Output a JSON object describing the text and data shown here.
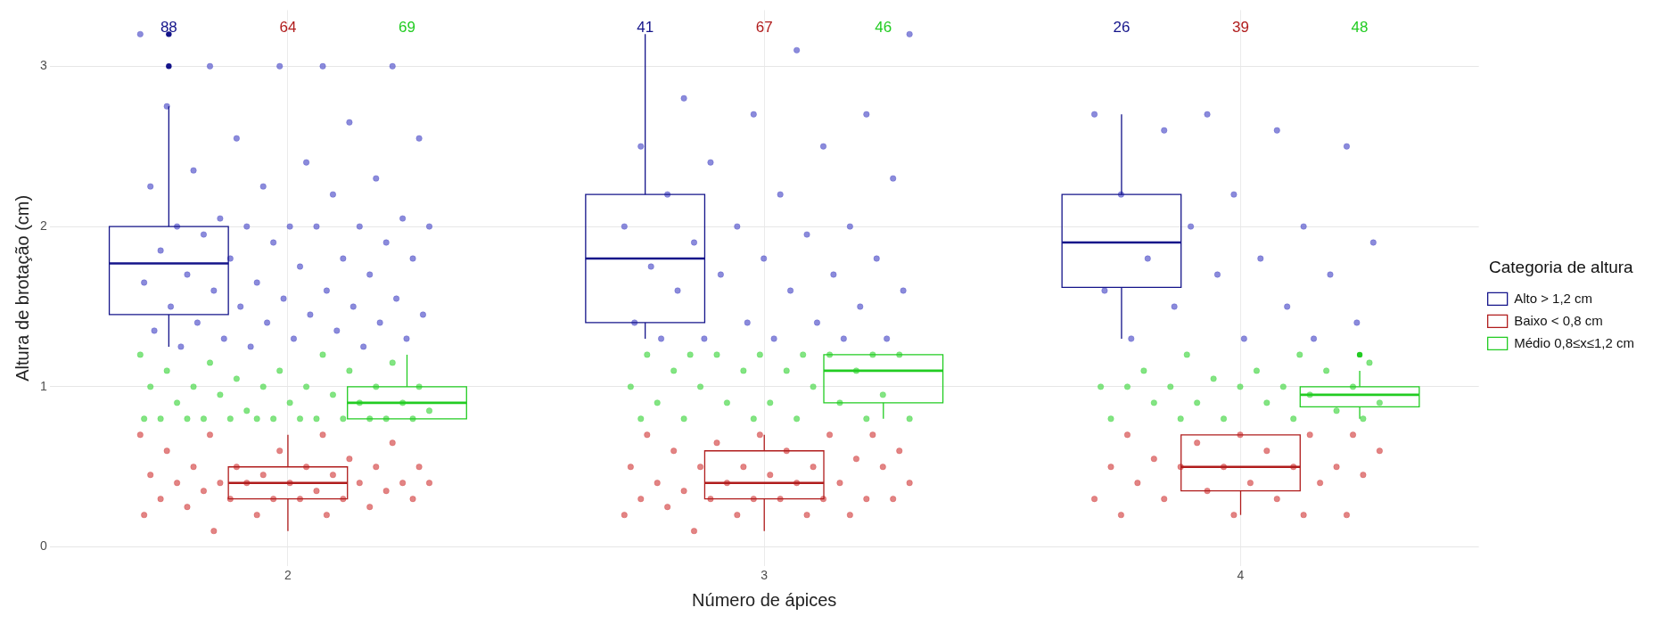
{
  "chart_data": {
    "type": "box",
    "xlabel": "Número de ápices",
    "ylabel": "Altura de brotação (cm)",
    "legend_title": "Categoria de altura",
    "categories": [
      "2",
      "3",
      "4"
    ],
    "ylim": [
      -0.12,
      3.35
    ],
    "yticks": [
      0,
      1,
      2,
      3
    ],
    "grid": true,
    "legend": "right",
    "series": [
      {
        "type": "box",
        "name": "Alto > 1,2 cm",
        "color": "#14148a",
        "boxes": [
          {
            "low": 1.25,
            "q1": 1.45,
            "median": 1.77,
            "q3": 2.0,
            "high": 2.75,
            "outliers": [
              3.0,
              3.2
            ]
          },
          {
            "low": 1.3,
            "q1": 1.4,
            "median": 1.8,
            "q3": 2.2,
            "high": 3.2
          },
          {
            "low": 1.3,
            "q1": 1.62,
            "median": 1.9,
            "q3": 2.2,
            "high": 2.7
          }
        ]
      },
      {
        "type": "box",
        "name": "Baixo < 0,8 cm",
        "color": "#b01c1c",
        "boxes": [
          {
            "low": 0.1,
            "q1": 0.3,
            "median": 0.4,
            "q3": 0.5,
            "high": 0.7
          },
          {
            "low": 0.1,
            "q1": 0.3,
            "median": 0.4,
            "q3": 0.6,
            "high": 0.7
          },
          {
            "low": 0.2,
            "q1": 0.35,
            "median": 0.5,
            "q3": 0.7,
            "high": 0.7
          }
        ]
      },
      {
        "type": "box",
        "name": "Médio 0,8≤x≤1,2 cm",
        "color": "#22cc22",
        "boxes": [
          {
            "low": 0.8,
            "q1": 0.8,
            "median": 0.9,
            "q3": 1.0,
            "high": 1.2
          },
          {
            "low": 0.8,
            "q1": 0.9,
            "median": 1.1,
            "q3": 1.2,
            "high": 1.2
          },
          {
            "low": 0.8,
            "q1": 0.875,
            "median": 0.95,
            "q3": 1.0,
            "high": 1.1,
            "outliers": [
              1.2
            ]
          }
        ]
      },
      {
        "type": "scatter",
        "color": "#5a5acc",
        "x": [
          "2",
          "2",
          "2",
          "2",
          "2",
          "2",
          "2",
          "2",
          "2",
          "2",
          "2",
          "2",
          "2",
          "2",
          "2",
          "2",
          "2",
          "2",
          "2",
          "2",
          "2",
          "2",
          "2",
          "2",
          "2",
          "2",
          "2",
          "2",
          "2",
          "2",
          "2",
          "2",
          "2",
          "2",
          "2",
          "2",
          "2",
          "2",
          "2",
          "2",
          "2",
          "2",
          "2",
          "2",
          "2",
          "2",
          "2",
          "2",
          "2",
          "2",
          "2",
          "2",
          "2",
          "2",
          "2",
          "3",
          "3",
          "3",
          "3",
          "3",
          "3",
          "3",
          "3",
          "3",
          "3",
          "3",
          "3",
          "3",
          "3",
          "3",
          "3",
          "3",
          "3",
          "3",
          "3",
          "3",
          "3",
          "3",
          "3",
          "3",
          "3",
          "3",
          "3",
          "3",
          "3",
          "3",
          "3",
          "3",
          "4",
          "4",
          "4",
          "4",
          "4",
          "4",
          "4",
          "4",
          "4",
          "4",
          "4",
          "4",
          "4",
          "4",
          "4",
          "4",
          "4",
          "4",
          "4",
          "4",
          "4"
        ],
        "values": [
          3.2,
          3.0,
          3.0,
          3.0,
          3.0,
          2.75,
          2.65,
          2.55,
          2.55,
          2.4,
          2.35,
          2.3,
          2.25,
          2.25,
          2.2,
          2.05,
          2.05,
          2.0,
          2.0,
          2.0,
          2.0,
          2.0,
          2.0,
          1.95,
          1.9,
          1.9,
          1.85,
          1.8,
          1.8,
          1.8,
          1.75,
          1.7,
          1.7,
          1.65,
          1.65,
          1.6,
          1.6,
          1.55,
          1.55,
          1.5,
          1.5,
          1.5,
          1.45,
          1.45,
          1.4,
          1.4,
          1.4,
          1.35,
          1.35,
          1.3,
          1.3,
          1.3,
          1.25,
          1.25,
          1.25,
          3.2,
          3.1,
          2.8,
          2.7,
          2.7,
          2.5,
          2.5,
          2.4,
          2.3,
          2.2,
          2.2,
          2.0,
          2.0,
          2.0,
          1.95,
          1.9,
          1.8,
          1.8,
          1.75,
          1.7,
          1.7,
          1.6,
          1.6,
          1.6,
          1.5,
          1.4,
          1.4,
          1.4,
          1.3,
          1.3,
          1.3,
          1.3,
          1.3,
          2.7,
          2.7,
          2.6,
          2.6,
          2.5,
          2.2,
          2.2,
          2.0,
          2.0,
          1.9,
          1.8,
          1.8,
          1.7,
          1.7,
          1.6,
          1.5,
          1.5,
          1.4,
          1.3,
          1.3,
          1.3
        ]
      },
      {
        "type": "scatter",
        "color": "#d65050",
        "x": [
          "2",
          "2",
          "2",
          "2",
          "2",
          "2",
          "2",
          "2",
          "2",
          "2",
          "2",
          "2",
          "2",
          "2",
          "2",
          "2",
          "2",
          "2",
          "2",
          "2",
          "2",
          "2",
          "2",
          "2",
          "2",
          "2",
          "2",
          "2",
          "2",
          "2",
          "2",
          "2",
          "2",
          "2",
          "2",
          "2",
          "2",
          "3",
          "3",
          "3",
          "3",
          "3",
          "3",
          "3",
          "3",
          "3",
          "3",
          "3",
          "3",
          "3",
          "3",
          "3",
          "3",
          "3",
          "3",
          "3",
          "3",
          "3",
          "3",
          "3",
          "3",
          "3",
          "3",
          "3",
          "3",
          "3",
          "3",
          "3",
          "3",
          "3",
          "3",
          "4",
          "4",
          "4",
          "4",
          "4",
          "4",
          "4",
          "4",
          "4",
          "4",
          "4",
          "4",
          "4",
          "4",
          "4",
          "4",
          "4",
          "4",
          "4",
          "4",
          "4",
          "4",
          "4",
          "4",
          "4"
        ],
        "values": [
          0.7,
          0.7,
          0.7,
          0.65,
          0.6,
          0.6,
          0.55,
          0.5,
          0.5,
          0.5,
          0.5,
          0.5,
          0.45,
          0.45,
          0.45,
          0.4,
          0.4,
          0.4,
          0.4,
          0.4,
          0.4,
          0.4,
          0.35,
          0.35,
          0.35,
          0.3,
          0.3,
          0.3,
          0.3,
          0.3,
          0.3,
          0.25,
          0.25,
          0.2,
          0.2,
          0.2,
          0.1,
          0.7,
          0.7,
          0.7,
          0.7,
          0.65,
          0.6,
          0.6,
          0.6,
          0.55,
          0.5,
          0.5,
          0.5,
          0.5,
          0.5,
          0.45,
          0.4,
          0.4,
          0.4,
          0.4,
          0.4,
          0.35,
          0.3,
          0.3,
          0.3,
          0.3,
          0.3,
          0.3,
          0.3,
          0.25,
          0.2,
          0.2,
          0.2,
          0.2,
          0.1,
          0.7,
          0.7,
          0.7,
          0.7,
          0.65,
          0.6,
          0.6,
          0.55,
          0.5,
          0.5,
          0.5,
          0.5,
          0.5,
          0.45,
          0.4,
          0.4,
          0.4,
          0.35,
          0.3,
          0.3,
          0.3,
          0.2,
          0.2,
          0.2,
          0.2
        ]
      },
      {
        "type": "scatter",
        "color": "#4fd94f",
        "x": [
          "2",
          "2",
          "2",
          "2",
          "2",
          "2",
          "2",
          "2",
          "2",
          "2",
          "2",
          "2",
          "2",
          "2",
          "2",
          "2",
          "2",
          "2",
          "2",
          "2",
          "2",
          "2",
          "2",
          "2",
          "2",
          "2",
          "2",
          "2",
          "2",
          "2",
          "2",
          "2",
          "2",
          "2",
          "2",
          "3",
          "3",
          "3",
          "3",
          "3",
          "3",
          "3",
          "3",
          "3",
          "3",
          "3",
          "3",
          "3",
          "3",
          "3",
          "3",
          "3",
          "3",
          "3",
          "3",
          "3",
          "3",
          "3",
          "3",
          "3",
          "3",
          "4",
          "4",
          "4",
          "4",
          "4",
          "4",
          "4",
          "4",
          "4",
          "4",
          "4",
          "4",
          "4",
          "4",
          "4",
          "4",
          "4",
          "4",
          "4",
          "4",
          "4",
          "4",
          "4",
          "4"
        ],
        "values": [
          1.2,
          1.2,
          1.15,
          1.15,
          1.1,
          1.1,
          1.1,
          1.05,
          1.0,
          1.0,
          1.0,
          1.0,
          1.0,
          1.0,
          0.95,
          0.95,
          0.9,
          0.9,
          0.9,
          0.9,
          0.85,
          0.85,
          0.8,
          0.8,
          0.8,
          0.8,
          0.8,
          0.8,
          0.8,
          0.8,
          0.8,
          0.8,
          0.8,
          0.8,
          0.8,
          1.2,
          1.2,
          1.2,
          1.2,
          1.2,
          1.2,
          1.2,
          1.2,
          1.1,
          1.1,
          1.1,
          1.1,
          1.0,
          1.0,
          1.0,
          0.95,
          0.9,
          0.9,
          0.9,
          0.9,
          0.8,
          0.8,
          0.8,
          0.8,
          0.8,
          0.8,
          1.2,
          1.2,
          1.15,
          1.1,
          1.1,
          1.1,
          1.05,
          1.0,
          1.0,
          1.0,
          1.0,
          1.0,
          1.0,
          0.95,
          0.9,
          0.9,
          0.9,
          0.9,
          0.85,
          0.8,
          0.8,
          0.8,
          0.8,
          0.8
        ]
      }
    ],
    "annotations": [
      "88",
      "64",
      "69",
      "41",
      "67",
      "46",
      "26",
      "39",
      "48"
    ]
  }
}
